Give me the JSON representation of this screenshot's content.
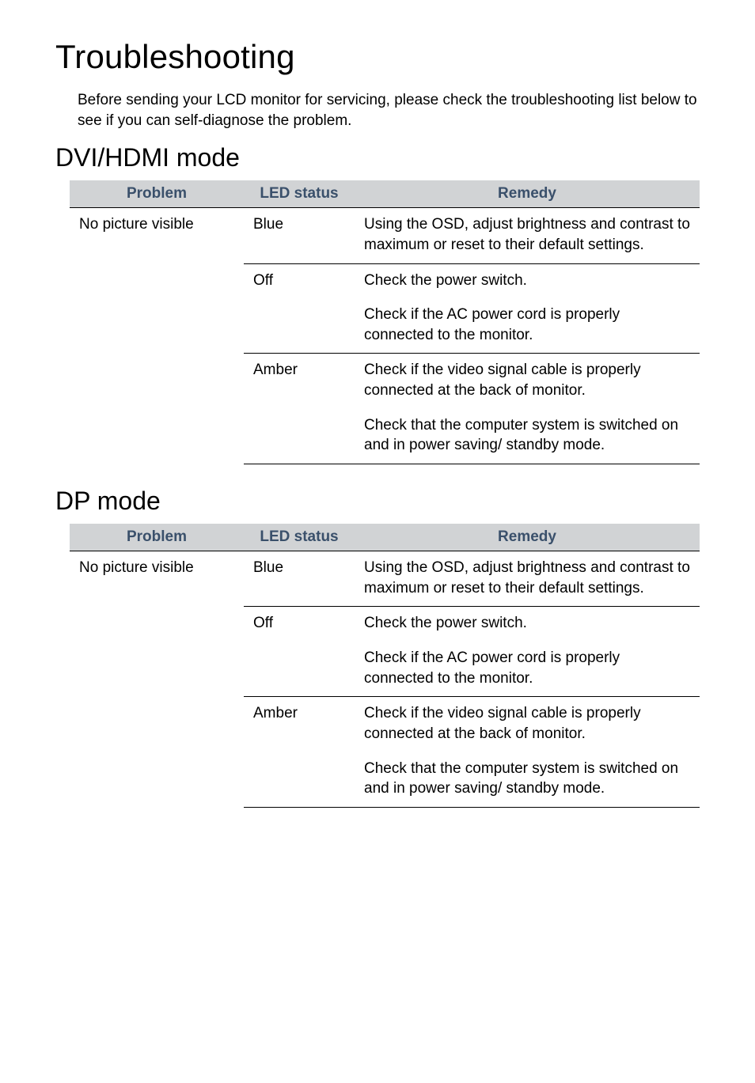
{
  "page_title": "Troubleshooting",
  "intro": "Before sending your LCD monitor for servicing, please check the troubleshooting list below to see if you can self-diagnose the problem.",
  "colors": {
    "header_bg": "#d1d3d5",
    "header_text": "#3a506b",
    "body_text": "#000000",
    "page_bg": "#ffffff",
    "rule": "#000000"
  },
  "sections": [
    {
      "heading": "DVI/HDMI mode",
      "columns": [
        "Problem",
        "LED status",
        "Remedy"
      ],
      "problem": "No picture visible",
      "rows": [
        {
          "led": "Blue",
          "remedy": [
            "Using the OSD, adjust brightness and contrast to maximum or reset to their default settings."
          ]
        },
        {
          "led": "Off",
          "remedy": [
            "Check the power switch.",
            "Check if the AC power cord is properly connected to the monitor."
          ]
        },
        {
          "led": "Amber",
          "remedy": [
            "Check if the video signal cable is properly connected at the back of monitor.",
            "Check that the computer system is switched on and in power saving/ standby mode."
          ]
        }
      ]
    },
    {
      "heading": "DP mode",
      "columns": [
        "Problem",
        "LED status",
        "Remedy"
      ],
      "problem": "No picture visible",
      "rows": [
        {
          "led": "Blue",
          "remedy": [
            "Using the OSD, adjust brightness and contrast to maximum or reset to their default settings."
          ]
        },
        {
          "led": "Off",
          "remedy": [
            "Check the power switch.",
            "Check if the AC power cord is properly connected to the monitor."
          ]
        },
        {
          "led": "Amber",
          "remedy": [
            "Check if the video signal cable is properly connected at the back of monitor.",
            "Check that the computer system is switched on and in power saving/ standby mode."
          ]
        }
      ]
    }
  ]
}
